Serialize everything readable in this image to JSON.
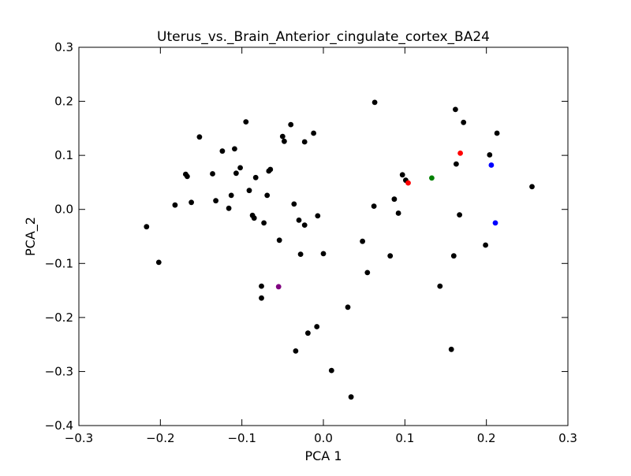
{
  "chart_data": {
    "type": "scatter",
    "title": "Uterus_vs._Brain_Anterior_cingulate_cortex_BA24",
    "xlabel": "PCA 1",
    "ylabel": "PCA_2",
    "xlim": [
      -0.3,
      0.3
    ],
    "ylim": [
      -0.4,
      0.3
    ],
    "xticks": [
      -0.3,
      -0.2,
      -0.1,
      0.0,
      0.1,
      0.2,
      0.3
    ],
    "xtick_labels": [
      "−0.3",
      "−0.2",
      "−0.1",
      "0.0",
      "0.1",
      "0.2",
      "0.3"
    ],
    "yticks": [
      -0.4,
      -0.3,
      -0.2,
      -0.1,
      0.0,
      0.1,
      0.2,
      0.3
    ],
    "ytick_labels": [
      "−0.4",
      "−0.3",
      "−0.2",
      "−0.1",
      "0.0",
      "0.1",
      "0.2",
      "0.3"
    ],
    "grid": false,
    "series": [
      {
        "color": "#000000",
        "points": [
          [
            -0.217,
            -0.032
          ],
          [
            -0.202,
            -0.098
          ],
          [
            -0.182,
            0.008
          ],
          [
            -0.169,
            0.065
          ],
          [
            -0.167,
            0.061
          ],
          [
            -0.162,
            0.013
          ],
          [
            -0.152,
            0.134
          ],
          [
            -0.136,
            0.066
          ],
          [
            -0.132,
            0.016
          ],
          [
            -0.124,
            0.108
          ],
          [
            -0.116,
            0.002
          ],
          [
            -0.113,
            0.026
          ],
          [
            -0.109,
            0.112
          ],
          [
            -0.107,
            0.067
          ],
          [
            -0.102,
            0.077
          ],
          [
            -0.095,
            0.162
          ],
          [
            -0.091,
            0.035
          ],
          [
            -0.087,
            -0.011
          ],
          [
            -0.085,
            -0.016
          ],
          [
            -0.083,
            0.059
          ],
          [
            -0.076,
            -0.142
          ],
          [
            -0.076,
            -0.164
          ],
          [
            -0.073,
            -0.025
          ],
          [
            -0.069,
            0.026
          ],
          [
            -0.067,
            0.071
          ],
          [
            -0.065,
            0.074
          ],
          [
            -0.054,
            -0.057
          ],
          [
            -0.05,
            0.135
          ],
          [
            -0.048,
            0.126
          ],
          [
            -0.04,
            0.157
          ],
          [
            -0.036,
            0.01
          ],
          [
            -0.034,
            -0.262
          ],
          [
            -0.03,
            -0.02
          ],
          [
            -0.028,
            -0.083
          ],
          [
            -0.023,
            -0.029
          ],
          [
            -0.023,
            0.125
          ],
          [
            -0.019,
            -0.229
          ],
          [
            -0.012,
            0.141
          ],
          [
            -0.008,
            -0.217
          ],
          [
            -0.007,
            -0.012
          ],
          [
            0.0,
            -0.082
          ],
          [
            0.01,
            -0.298
          ],
          [
            0.03,
            -0.181
          ],
          [
            0.034,
            -0.347
          ],
          [
            0.048,
            -0.059
          ],
          [
            0.054,
            -0.117
          ],
          [
            0.062,
            0.006
          ],
          [
            0.063,
            0.198
          ],
          [
            0.082,
            -0.086
          ],
          [
            0.087,
            0.019
          ],
          [
            0.092,
            -0.007
          ],
          [
            0.097,
            0.064
          ],
          [
            0.101,
            0.054
          ],
          [
            0.143,
            -0.142
          ],
          [
            0.157,
            -0.259
          ],
          [
            0.16,
            -0.086
          ],
          [
            0.162,
            0.185
          ],
          [
            0.163,
            0.084
          ],
          [
            0.167,
            -0.01
          ],
          [
            0.172,
            0.161
          ],
          [
            0.199,
            -0.066
          ],
          [
            0.204,
            0.101
          ],
          [
            0.213,
            0.141
          ],
          [
            0.256,
            0.042
          ]
        ]
      },
      {
        "color": "#ff0000",
        "points": [
          [
            0.104,
            0.049
          ],
          [
            0.168,
            0.104
          ]
        ]
      },
      {
        "color": "#008000",
        "points": [
          [
            0.133,
            0.058
          ]
        ]
      },
      {
        "color": "#0000ff",
        "points": [
          [
            0.206,
            0.082
          ],
          [
            0.211,
            -0.025
          ]
        ]
      },
      {
        "color": "#800080",
        "points": [
          [
            -0.055,
            -0.143
          ]
        ]
      }
    ]
  }
}
